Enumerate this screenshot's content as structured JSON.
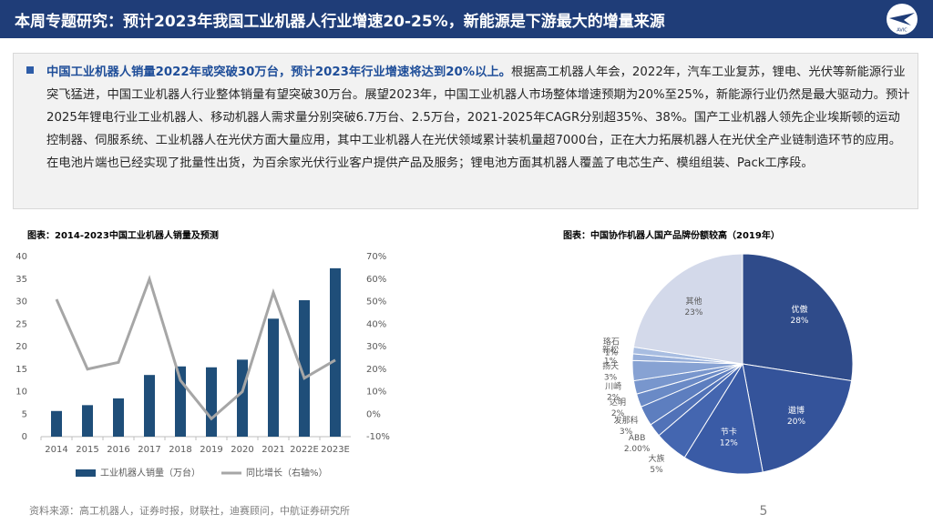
{
  "header": {
    "title": "本周专题研究：预计2023年我国工业机器人行业增速20-25%，新能源是下游最大的增量来源",
    "logo_text": "AVIC"
  },
  "body": {
    "highlight": "中国工业机器人销量2022年或突破30万台，预计2023年行业增速将达到20%以上。",
    "text": "根据高工机器人年会，2022年，汽车工业复苏，锂电、光伏等新能源行业突飞猛进，中国工业机器人行业整体销量有望突破30万台。展望2023年，中国工业机器人市场整体增速预期为20%至25%，新能源行业仍然是最大驱动力。预计2025年锂电行业工业机器人、移动机器人需求量分别突破6.7万台、2.5万台，2021-2025年CAGR分别超35%、38%。国产工业机器人领先企业埃斯顿的运动控制器、伺服系统、工业机器人在光伏方面大量应用，其中工业机器人在光伏领域累计装机量超7000台，正在大力拓展机器人在光伏全产业链制造环节的应用。在电池片端也已经实现了批量性出货，为百余家光伏行业客户提供产品及服务；锂电池方面其机器人覆盖了电芯生产、模组组装、Pack工序段。"
  },
  "chart_data": [
    {
      "type": "bar",
      "title": "图表：2014-2023中国工业机器人销量及预测",
      "categories": [
        "2014",
        "2015",
        "2016",
        "2017",
        "2018",
        "2019",
        "2020",
        "2021",
        "2022E",
        "2023E"
      ],
      "series": [
        {
          "name": "工业机器人销量（万台）",
          "type": "bar",
          "color": "#1f4e79",
          "values": [
            5.7,
            7.0,
            8.5,
            13.7,
            15.6,
            15.4,
            17.1,
            26.2,
            30.3,
            37.4
          ]
        },
        {
          "name": "同比增长（右轴%）",
          "type": "line",
          "axis": "y2",
          "color": "#a6a6a6",
          "values": [
            51,
            20,
            23,
            60,
            15,
            -2,
            10,
            54,
            16,
            24
          ]
        }
      ],
      "ylim": [
        0,
        40
      ],
      "yticks": [
        0,
        5,
        10,
        15,
        20,
        25,
        30,
        35,
        40
      ],
      "y2lim": [
        -10,
        70
      ],
      "y2ticks": [
        {
          "value": -10,
          "label": "-10%"
        },
        {
          "value": 0,
          "label": "0%"
        },
        {
          "value": 10,
          "label": "10%"
        },
        {
          "value": 20,
          "label": "20%"
        },
        {
          "value": 30,
          "label": "30%"
        },
        {
          "value": 40,
          "label": "40%"
        },
        {
          "value": 50,
          "label": "50%"
        },
        {
          "value": 60,
          "label": "60%"
        },
        {
          "value": 70,
          "label": "70%"
        }
      ],
      "grid": false,
      "legend": "bottom"
    },
    {
      "type": "pie",
      "title": "图表：中国协作机器人国产品牌份额较高（2019年）",
      "categories": [
        "优傲",
        "遨博",
        "节卡",
        "大族",
        "ABB",
        "发那科",
        "达明",
        "川崎",
        "扬天",
        "新松",
        "珞石",
        "其他"
      ],
      "values": [
        28,
        20,
        12,
        5,
        2,
        3,
        2,
        2,
        3,
        1,
        1,
        23
      ],
      "value_labels": [
        "28%",
        "20%",
        "12%",
        "5%",
        "2.00%",
        "3%",
        "2%",
        "2%",
        "3%",
        "1%",
        "1%",
        "23%"
      ],
      "colors": [
        "#2f4b8a",
        "#34539a",
        "#3a5ba6",
        "#4466b0",
        "#5172b8",
        "#5d7ebf",
        "#6a8ac6",
        "#7896cd",
        "#87a2d3",
        "#97afda",
        "#a8bde1",
        "#d3d9ea"
      ]
    }
  ],
  "footer": {
    "source": "资料来源：高工机器人，证券时报，财联社，迪赛顾问，中航证券研究所",
    "page": "5"
  }
}
